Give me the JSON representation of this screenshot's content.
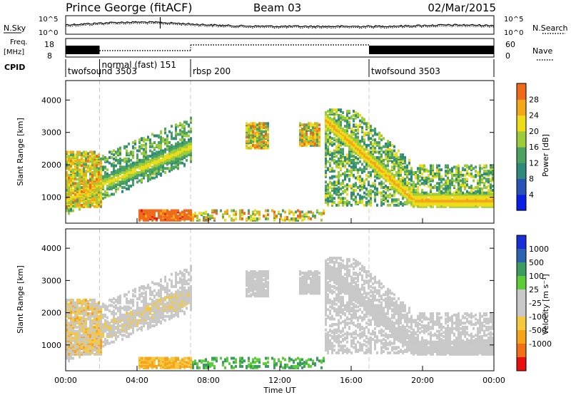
{
  "header": {
    "station": "Prince George (fitACF)",
    "beam": "Beam 03",
    "date": "02/Mar/2015"
  },
  "strip_nsky": {
    "label": "N.Sky",
    "right_label": "N.Search",
    "left_ticks": [
      "10^5",
      "10^0"
    ],
    "right_ticks": [
      "10^5",
      "10^0"
    ]
  },
  "strip_freq": {
    "label_top": "Freq.",
    "label_unit": "[MHz]",
    "right_label": "Nave",
    "left_ticks": [
      "18",
      "8"
    ],
    "right_ticks": [
      "60",
      "0"
    ]
  },
  "cpid": {
    "label": "CPID",
    "segments": [
      {
        "name": "twofsound 3503",
        "start_hour": 0.0,
        "end_hour": 1.9
      },
      {
        "name": "normal (fast) 151",
        "start_hour": 1.9,
        "end_hour": 7.0
      },
      {
        "name": "rbsp 200",
        "start_hour": 7.0,
        "end_hour": 17.0
      },
      {
        "name": "twofsound 3503",
        "start_hour": 17.0,
        "end_hour": 24.0
      }
    ]
  },
  "colors": {
    "power": [
      "#0a1ee6",
      "#2a53b8",
      "#2e8a7a",
      "#4ca262",
      "#9ccc3a",
      "#eedc1a",
      "#f2a81a",
      "#ef6a1a",
      "#e01a0a"
    ],
    "velocity": [
      "#e8100c",
      "#f07018",
      "#f5a41c",
      "#f5c840",
      "#c8c8c8",
      "#c8c8c8",
      "#5ccc38",
      "#3a9c60",
      "#2a64b0",
      "#1a2ed8"
    ],
    "grid": "#c8c8c8"
  },
  "chart_data": [
    {
      "type": "heatmap",
      "name": "power",
      "ylabel": "Slant Range [km]",
      "yticks": [
        "1000",
        "2000",
        "3000",
        "4000"
      ],
      "ylim": [
        200,
        4600
      ],
      "xlim": [
        0,
        24
      ],
      "colorbar_label": "Power [dB]",
      "colorbar_ticks": [
        "4",
        "8",
        "12",
        "16",
        "20",
        "24",
        "28"
      ],
      "colorbar_range": [
        0,
        32
      ]
    },
    {
      "type": "heatmap",
      "name": "velocity",
      "ylabel": "Slant Range [km]",
      "yticks": [
        "1000",
        "2000",
        "3000",
        "4000"
      ],
      "ylim": [
        200,
        4600
      ],
      "xlim": [
        0,
        24
      ],
      "xticks": [
        "00:00",
        "04:00",
        "08:00",
        "12:00",
        "16:00",
        "20:00",
        "00:00"
      ],
      "xlabel": "Time UT",
      "colorbar_label": "Velocity [m s⁻¹]",
      "colorbar_ticks": [
        "1000",
        "500",
        "100",
        "25",
        "-25",
        "-100",
        "-500",
        "-1000"
      ]
    }
  ]
}
